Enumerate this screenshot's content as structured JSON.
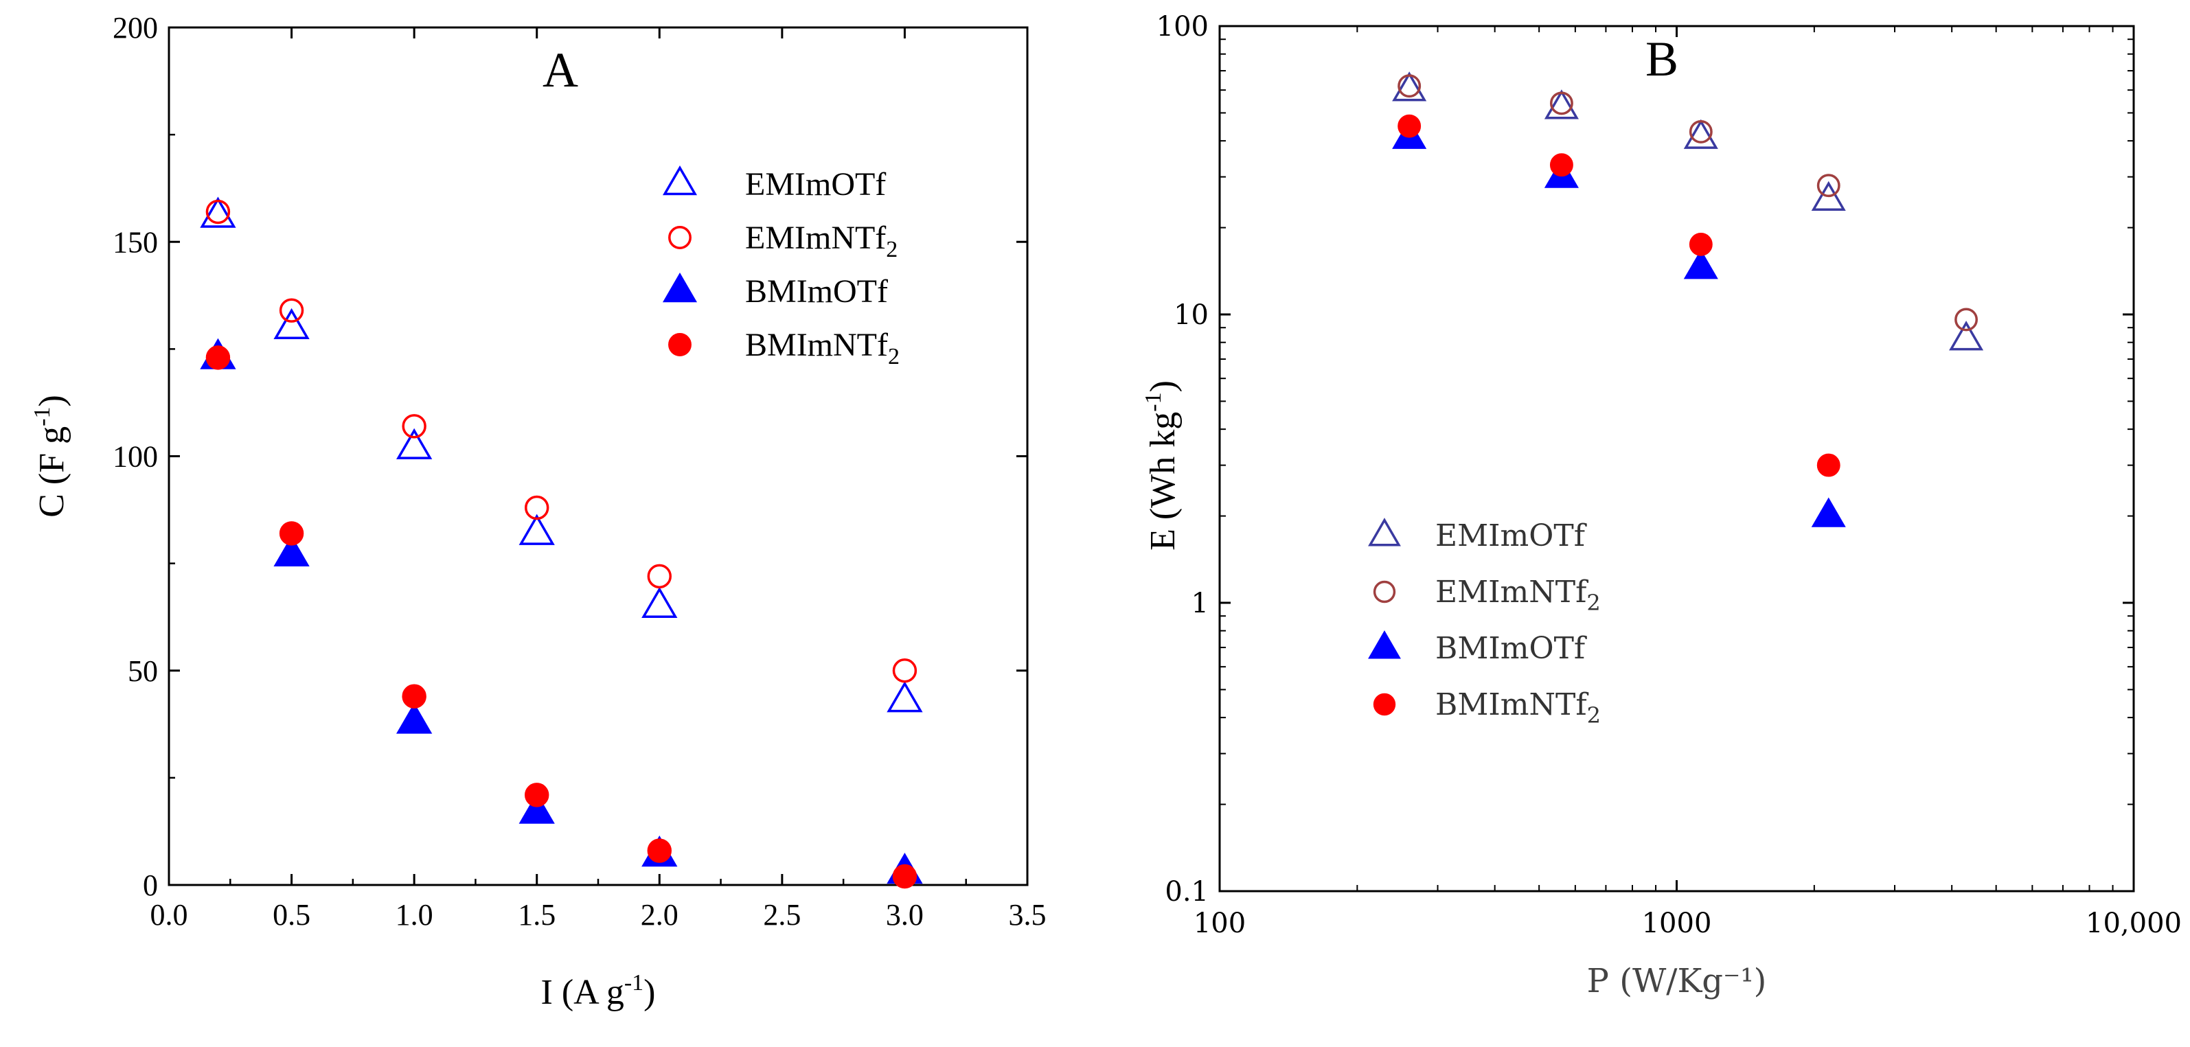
{
  "chart_data": [
    {
      "type": "scatter",
      "panel_label": "A",
      "xlabel": "I (A g",
      "xlabel_sup": "-1",
      "xlabel_end": ")",
      "ylabel": "C (F g",
      "ylabel_sup": "-1",
      "ylabel_end": ")",
      "xlim": [
        0.0,
        3.5
      ],
      "ylim": [
        0,
        200
      ],
      "xticks": [
        "0.0",
        "0.5",
        "1.0",
        "1.5",
        "2.0",
        "2.5",
        "3.0",
        "3.5"
      ],
      "yticks": [
        "0",
        "50",
        "100",
        "150",
        "200"
      ],
      "legend_position": "top-right",
      "x": [
        0.2,
        0.5,
        1.0,
        1.5,
        2.0,
        3.0
      ],
      "series": [
        {
          "name": "EMImOTf",
          "label": "EMImOTf",
          "sub": "",
          "marker": "triangle-open",
          "color": "#0000ff",
          "values": [
            156,
            130,
            102,
            82,
            65,
            43
          ]
        },
        {
          "name": "EMImNTf2",
          "label": "EMImNTf",
          "sub": "2",
          "marker": "circle-open",
          "color": "#ff0000",
          "values": [
            157,
            134,
            107,
            88,
            72,
            50
          ]
        },
        {
          "name": "BMImOTf",
          "label": "BMImOTf",
          "sub": "",
          "marker": "triangle-filled",
          "color": "#0000ff",
          "values": [
            123,
            77,
            38,
            17,
            7,
            3
          ]
        },
        {
          "name": "BMImNTf2",
          "label": "BMImNTf",
          "sub": "2",
          "marker": "circle-filled",
          "color": "#ff0000",
          "values": [
            123,
            82,
            44,
            21,
            8,
            2
          ]
        }
      ]
    },
    {
      "type": "scatter",
      "panel_label": "B",
      "xscale": "log",
      "yscale": "log",
      "xlabel": "P (W/Kg⁻¹)",
      "ylabel": "E (Wh kg",
      "ylabel_sup": "-1",
      "ylabel_end": ")",
      "xlim": [
        100,
        10000
      ],
      "ylim": [
        0.1,
        100
      ],
      "xticks": [
        {
          "v": 100,
          "t": "100"
        },
        {
          "v": 1000,
          "t": "1000"
        },
        {
          "v": 10000,
          "t": "10,000"
        }
      ],
      "yticks": [
        {
          "v": 0.1,
          "t": "0.1"
        },
        {
          "v": 1,
          "t": "1"
        },
        {
          "v": 10,
          "t": "10"
        },
        {
          "v": 100,
          "t": "100"
        }
      ],
      "legend_position": "bottom-left",
      "series": [
        {
          "name": "EMImOTf",
          "label": "EMImOTf",
          "sub": "",
          "marker": "triangle-open",
          "color": "#3a3aa0",
          "x": [
            260,
            560,
            1130,
            2150,
            4300
          ],
          "values": [
            60,
            52,
            41,
            25,
            8.2
          ]
        },
        {
          "name": "EMImNTf2",
          "label": "EMImNTf",
          "sub": "2",
          "marker": "circle-open",
          "color": "#a04040",
          "x": [
            260,
            560,
            1130,
            2150,
            4300
          ],
          "values": [
            62,
            54,
            43,
            28,
            9.6
          ]
        },
        {
          "name": "BMImOTf",
          "label": "BMImOTf",
          "sub": "",
          "marker": "triangle-filled",
          "color": "#0000ff",
          "x": [
            260,
            560,
            1130,
            2150
          ],
          "values": [
            41,
            30,
            14.5,
            2.0
          ]
        },
        {
          "name": "BMImNTf2",
          "label": "BMImNTf",
          "sub": "2",
          "marker": "circle-filled",
          "color": "#ff0000",
          "x": [
            260,
            560,
            1130,
            2150
          ],
          "values": [
            45,
            33,
            17.5,
            3.0
          ]
        }
      ]
    }
  ]
}
